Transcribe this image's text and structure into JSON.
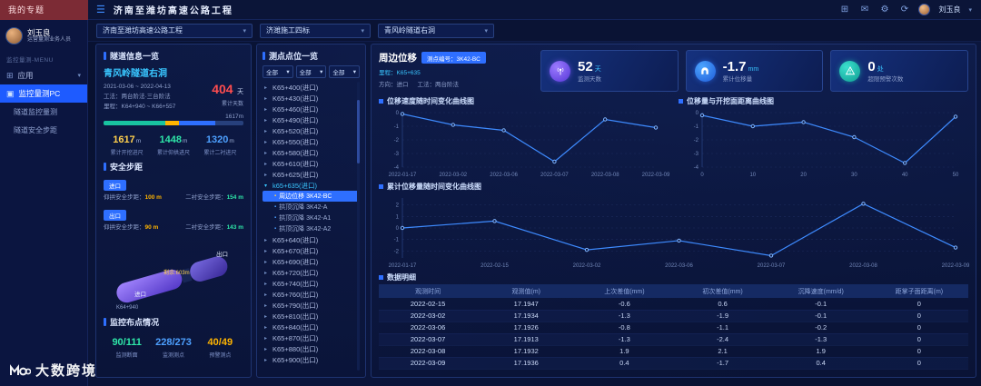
{
  "topbar": {
    "brand": "我的专题",
    "title": "济南至潍坊高速公路工程",
    "user": "刘玉良",
    "icons": [
      {
        "name": "apps-icon",
        "glyph": "⊞"
      },
      {
        "name": "mail-icon",
        "glyph": "✉"
      },
      {
        "name": "settings-icon",
        "glyph": "⚙"
      },
      {
        "name": "refresh-icon",
        "glyph": "⟳"
      }
    ]
  },
  "filterbar": {
    "project": "济南至潍坊高速公路工程",
    "section": "济潍施工四标",
    "tunnel": "青风岭隧道右洞"
  },
  "sidebar": {
    "user_name": "刘玉良",
    "user_role": "运营量测业务人员",
    "menu_group": "监控量测-MENU",
    "items": [
      {
        "label": "应用"
      },
      {
        "label": "监控量测PC"
      },
      {
        "label": "隧道监控量测"
      },
      {
        "label": "隧道安全步距"
      }
    ]
  },
  "tunnel_panel": {
    "title": "隧道信息一览",
    "tunnel_name": "青风岭隧道右洞",
    "date_range": "2021-03-06 ~ 2022-04-13",
    "method_line": "工法：两台阶法·三台阶法",
    "mileage_line": "里程：K64+940 ~ K66+557",
    "days_value": "404",
    "days_unit": "天",
    "days_label": "累计天数",
    "total_length": "1617m",
    "progress_segments": [
      {
        "color": "#19c3a0",
        "pct": 44
      },
      {
        "color": "#ffb400",
        "pct": 10
      },
      {
        "color": "#2e6fff",
        "pct": 26
      },
      {
        "color": "#27407c",
        "pct": 20
      }
    ],
    "stats": [
      {
        "value": "1617",
        "unit": "m",
        "label": "累计开挖进尺"
      },
      {
        "value": "1448",
        "unit": "m",
        "label": "累计仰拱进尺"
      },
      {
        "value": "1320",
        "unit": "m",
        "label": "累计二衬进尺"
      }
    ],
    "safety_title": "安全步距",
    "safety": [
      {
        "portal": "进口",
        "row1_label": "仰拱安全步距：",
        "row1_value": "100 m",
        "row2_label": "二衬安全步距：",
        "row2_value": "154 m"
      },
      {
        "portal": "出口",
        "row1_label": "仰拱安全步距：",
        "row1_value": "90 m",
        "row2_label": "二衬安全步距：",
        "row2_value": "143 m"
      }
    ],
    "model_labels": {
      "entry": "进口",
      "exit": "出口",
      "start": "K64+940",
      "remain": "剩余:603m"
    },
    "layout_title": "监控布点情况",
    "layout_stats": [
      {
        "value": "90/111",
        "label": "监测断面"
      },
      {
        "value": "228/273",
        "label": "监测测点"
      },
      {
        "value": "40/49",
        "label": "预警测点"
      }
    ]
  },
  "points_panel": {
    "title": "测点点位一览",
    "filters": [
      "全部",
      "全部",
      "全部"
    ],
    "items": [
      {
        "label": "K65+400(进口)"
      },
      {
        "label": "K65+430(进口)"
      },
      {
        "label": "K65+460(进口)"
      },
      {
        "label": "K65+490(进口)"
      },
      {
        "label": "K65+520(进口)"
      },
      {
        "label": "K65+550(进口)"
      },
      {
        "label": "K65+580(进口)"
      },
      {
        "label": "K65+610(进口)"
      },
      {
        "label": "K65+625(进口)"
      },
      {
        "label": "k65+635(进口)",
        "expanded": true
      },
      {
        "label": "周边位移 3K42-BC",
        "sub": true,
        "selected": true
      },
      {
        "label": "拱顶沉降 3K42-A",
        "sub": true
      },
      {
        "label": "拱顶沉降 3K42-A1",
        "sub": true
      },
      {
        "label": "拱顶沉降 3K42-A2",
        "sub": true
      },
      {
        "label": "K65+640(进口)"
      },
      {
        "label": "K65+670(进口)"
      },
      {
        "label": "K65+690(进口)"
      },
      {
        "label": "K65+720(出口)"
      },
      {
        "label": "K65+740(出口)"
      },
      {
        "label": "K65+760(出口)"
      },
      {
        "label": "K65+790(出口)"
      },
      {
        "label": "K65+810(出口)"
      },
      {
        "label": "K65+840(出口)"
      },
      {
        "label": "K65+870(出口)"
      },
      {
        "label": "K65+880(出口)"
      },
      {
        "label": "K65+900(出口)"
      }
    ]
  },
  "detail_panel": {
    "title": "周边位移",
    "point_badge": "测点编号：3K42-BC",
    "mileage": "里程：K65+635",
    "direction": "方向：进口",
    "method": "工法：两台阶法",
    "cards": [
      {
        "value": "52",
        "unit": "天",
        "label": "监测天数",
        "icon": "antenna-icon"
      },
      {
        "value": "-1.7",
        "unit": "mm",
        "label": "累计位移量",
        "icon": "tunnel-icon"
      },
      {
        "value": "0",
        "unit": "处",
        "label": "超限预警次数",
        "icon": "warning-icon"
      }
    ],
    "table_title": "数据明细"
  },
  "chart_data": [
    {
      "type": "line",
      "title": "位移速度随时间变化曲线图",
      "x": [
        "2022-01-17",
        "2022-03-02",
        "2022-03-06",
        "2022-03-07",
        "2022-03-08",
        "2022-03-09"
      ],
      "values": [
        -0.1,
        -0.9,
        -1.3,
        -3.6,
        -0.5,
        -1.1
      ],
      "ylim": [
        -4,
        0
      ],
      "yticks": [
        0,
        -1,
        -2,
        -3,
        -4
      ],
      "xlabel": "",
      "ylabel": "mm/d",
      "grid": true,
      "legend": "none"
    },
    {
      "type": "line",
      "title": "位移量与开挖面距离曲线图",
      "x": [
        "0",
        "10",
        "20",
        "30",
        "40",
        "50"
      ],
      "values": [
        -0.2,
        -1.0,
        -0.7,
        -1.8,
        -3.7,
        -0.3
      ],
      "ylim": [
        -4,
        0
      ],
      "yticks": [
        0,
        -1,
        -2,
        -3,
        -4
      ],
      "xlabel": "",
      "ylabel": "mm",
      "grid": true,
      "legend": "none"
    },
    {
      "type": "line",
      "title": "累计位移量随时间变化曲线图",
      "x": [
        "2022-01-17",
        "2022-02-15",
        "2022-03-02",
        "2022-03-06",
        "2022-03-07",
        "2022-03-08",
        "2022-03-09"
      ],
      "values": [
        0,
        0.6,
        -1.9,
        -1.1,
        -2.4,
        2.1,
        -1.7
      ],
      "ylim": [
        -2.6,
        2.6
      ],
      "yticks": [
        2,
        1,
        0,
        -1,
        -2
      ],
      "xlabel": "",
      "ylabel": "mm",
      "grid": true,
      "legend": "none"
    }
  ],
  "table": {
    "columns": [
      "观测时间",
      "观测值(m)",
      "上次差值(mm)",
      "初次差值(mm)",
      "沉降速度(mm/d)",
      "距掌子面距离(m)"
    ],
    "rows": [
      [
        "2022-02-15",
        "17.1947",
        "-0.6",
        "0.6",
        "-0.1",
        "0"
      ],
      [
        "2022-03-02",
        "17.1934",
        "-1.3",
        "-1.9",
        "-0.1",
        "0"
      ],
      [
        "2022-03-06",
        "17.1926",
        "-0.8",
        "-1.1",
        "-0.2",
        "0"
      ],
      [
        "2022-03-07",
        "17.1913",
        "-1.3",
        "-2.4",
        "-1.3",
        "0"
      ],
      [
        "2022-03-08",
        "17.1932",
        "1.9",
        "2.1",
        "1.9",
        "0"
      ],
      [
        "2022-03-09",
        "17.1936",
        "0.4",
        "-1.7",
        "0.4",
        "0"
      ]
    ]
  },
  "watermark": "大数跨境",
  "colors": {
    "accent": "#2e6fff",
    "cyan": "#39c6ff",
    "red": "#ff4d4f",
    "orange": "#ffb400",
    "teal": "#2ee6a8",
    "purple": "#8d6bff",
    "line": "#3e8bff",
    "panel_border": "#1e3370"
  }
}
